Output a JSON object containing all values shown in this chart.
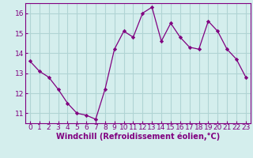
{
  "x": [
    0,
    1,
    2,
    3,
    4,
    5,
    6,
    7,
    8,
    9,
    10,
    11,
    12,
    13,
    14,
    15,
    16,
    17,
    18,
    19,
    20,
    21,
    22,
    23
  ],
  "y": [
    13.6,
    13.1,
    12.8,
    12.2,
    11.5,
    11.0,
    10.9,
    10.7,
    12.2,
    14.2,
    15.1,
    14.8,
    16.0,
    16.3,
    14.6,
    15.5,
    14.8,
    14.3,
    14.2,
    15.6,
    15.1,
    14.2,
    13.7,
    12.8
  ],
  "xlabel": "Windchill (Refroidissement éolien,°C)",
  "ylim": [
    10.5,
    16.5
  ],
  "yticks": [
    11,
    12,
    13,
    14,
    15,
    16
  ],
  "xticks": [
    0,
    1,
    2,
    3,
    4,
    5,
    6,
    7,
    8,
    9,
    10,
    11,
    12,
    13,
    14,
    15,
    16,
    17,
    18,
    19,
    20,
    21,
    22,
    23
  ],
  "line_color": "#800080",
  "marker_color": "#800080",
  "bg_color": "#d4eeed",
  "grid_color": "#b0d4d4",
  "xlabel_color": "#800080",
  "tick_color": "#800080",
  "spine_color": "#800080",
  "tick_fontsize": 6.5,
  "xlabel_fontsize": 7.0
}
